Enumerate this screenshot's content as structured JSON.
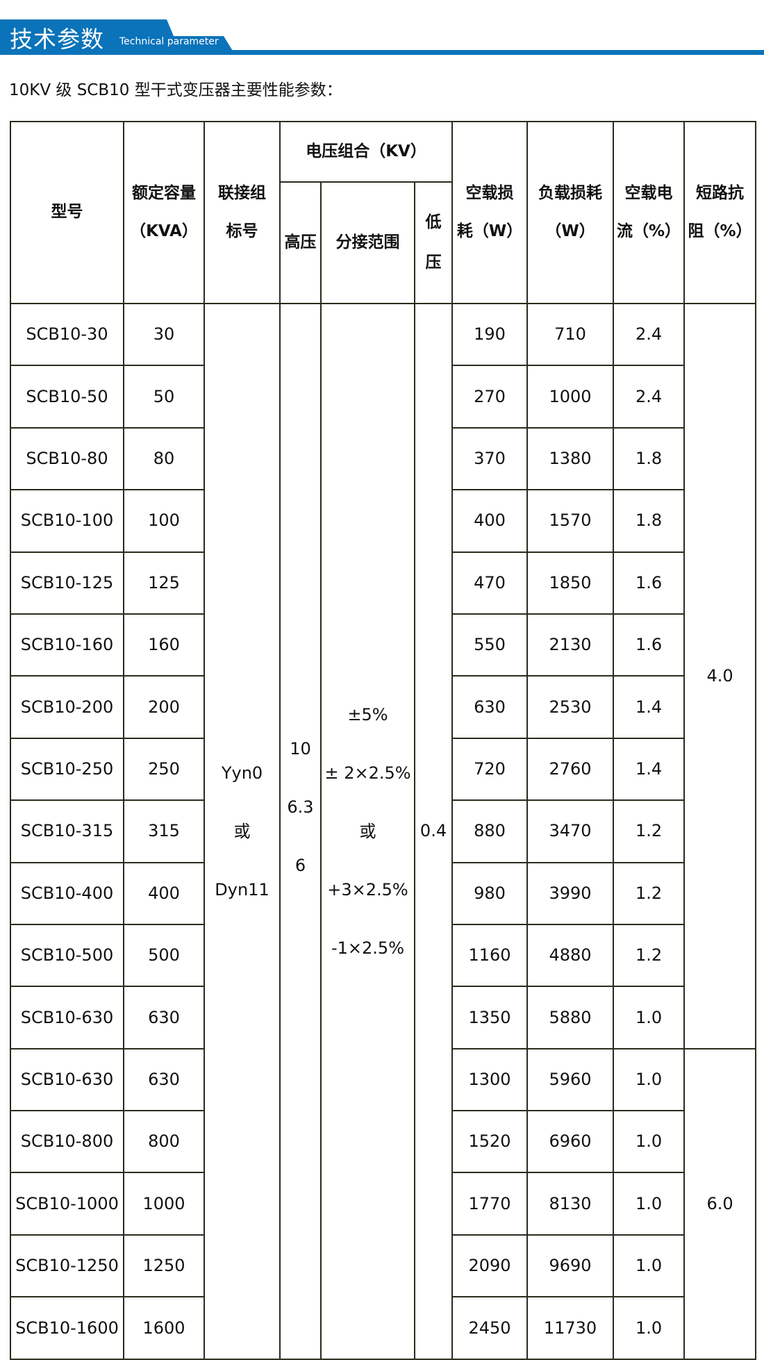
{
  "banner": {
    "title": "技术参数",
    "subtitle": "Technical parameter",
    "color": "#0a73b9"
  },
  "heading": "10KV 级 SCB10 型干式变压器主要性能参数：",
  "table": {
    "headers": {
      "model": "型号",
      "capacity": [
        "额定容量",
        "（KVA）"
      ],
      "connection": [
        "联接组",
        "标号"
      ],
      "voltage_group": "电压组合（KV）",
      "hv": "高压",
      "tap_range": "分接范围",
      "lv": [
        "低",
        "压"
      ],
      "no_load_loss": [
        "空载损",
        "耗（W）"
      ],
      "load_loss": [
        "负载损耗",
        "（W）"
      ],
      "no_load_current": [
        "空载电",
        "流（%）"
      ],
      "impedance": [
        "短路抗",
        "阻（%）"
      ]
    },
    "merged": {
      "connection": [
        "Yyn0",
        "或",
        "Dyn11"
      ],
      "hv": [
        "10",
        "6.3",
        "6"
      ],
      "tap_range": [
        "±5%",
        "± 2×2.5%",
        "或",
        "+3×2.5%",
        "-1×2.5%"
      ],
      "lv": "0.4",
      "impedance_a": "4.0",
      "impedance_b": "6.0"
    },
    "rows": [
      [
        "SCB10-30",
        "30",
        "190",
        "710",
        "2.4"
      ],
      [
        "SCB10-50",
        "50",
        "270",
        "1000",
        "2.4"
      ],
      [
        "SCB10-80",
        "80",
        "370",
        "1380",
        "1.8"
      ],
      [
        "SCB10-100",
        "100",
        "400",
        "1570",
        "1.8"
      ],
      [
        "SCB10-125",
        "125",
        "470",
        "1850",
        "1.6"
      ],
      [
        "SCB10-160",
        "160",
        "550",
        "2130",
        "1.6"
      ],
      [
        "SCB10-200",
        "200",
        "630",
        "2530",
        "1.4"
      ],
      [
        "SCB10-250",
        "250",
        "720",
        "2760",
        "1.4"
      ],
      [
        "SCB10-315",
        "315",
        "880",
        "3470",
        "1.2"
      ],
      [
        "SCB10-400",
        "400",
        "980",
        "3990",
        "1.2"
      ],
      [
        "SCB10-500",
        "500",
        "1160",
        "4880",
        "1.2"
      ],
      [
        "SCB10-630",
        "630",
        "1350",
        "5880",
        "1.0"
      ],
      [
        "SCB10-630",
        "630",
        "1300",
        "5960",
        "1.0"
      ],
      [
        "SCB10-800",
        "800",
        "1520",
        "6960",
        "1.0"
      ],
      [
        "SCB10-1000",
        "1000",
        "1770",
        "8130",
        "1.0"
      ],
      [
        "SCB10-1250",
        "1250",
        "2090",
        "9690",
        "1.0"
      ],
      [
        "SCB10-1600",
        "1600",
        "2450",
        "11730",
        "1.0"
      ]
    ]
  }
}
